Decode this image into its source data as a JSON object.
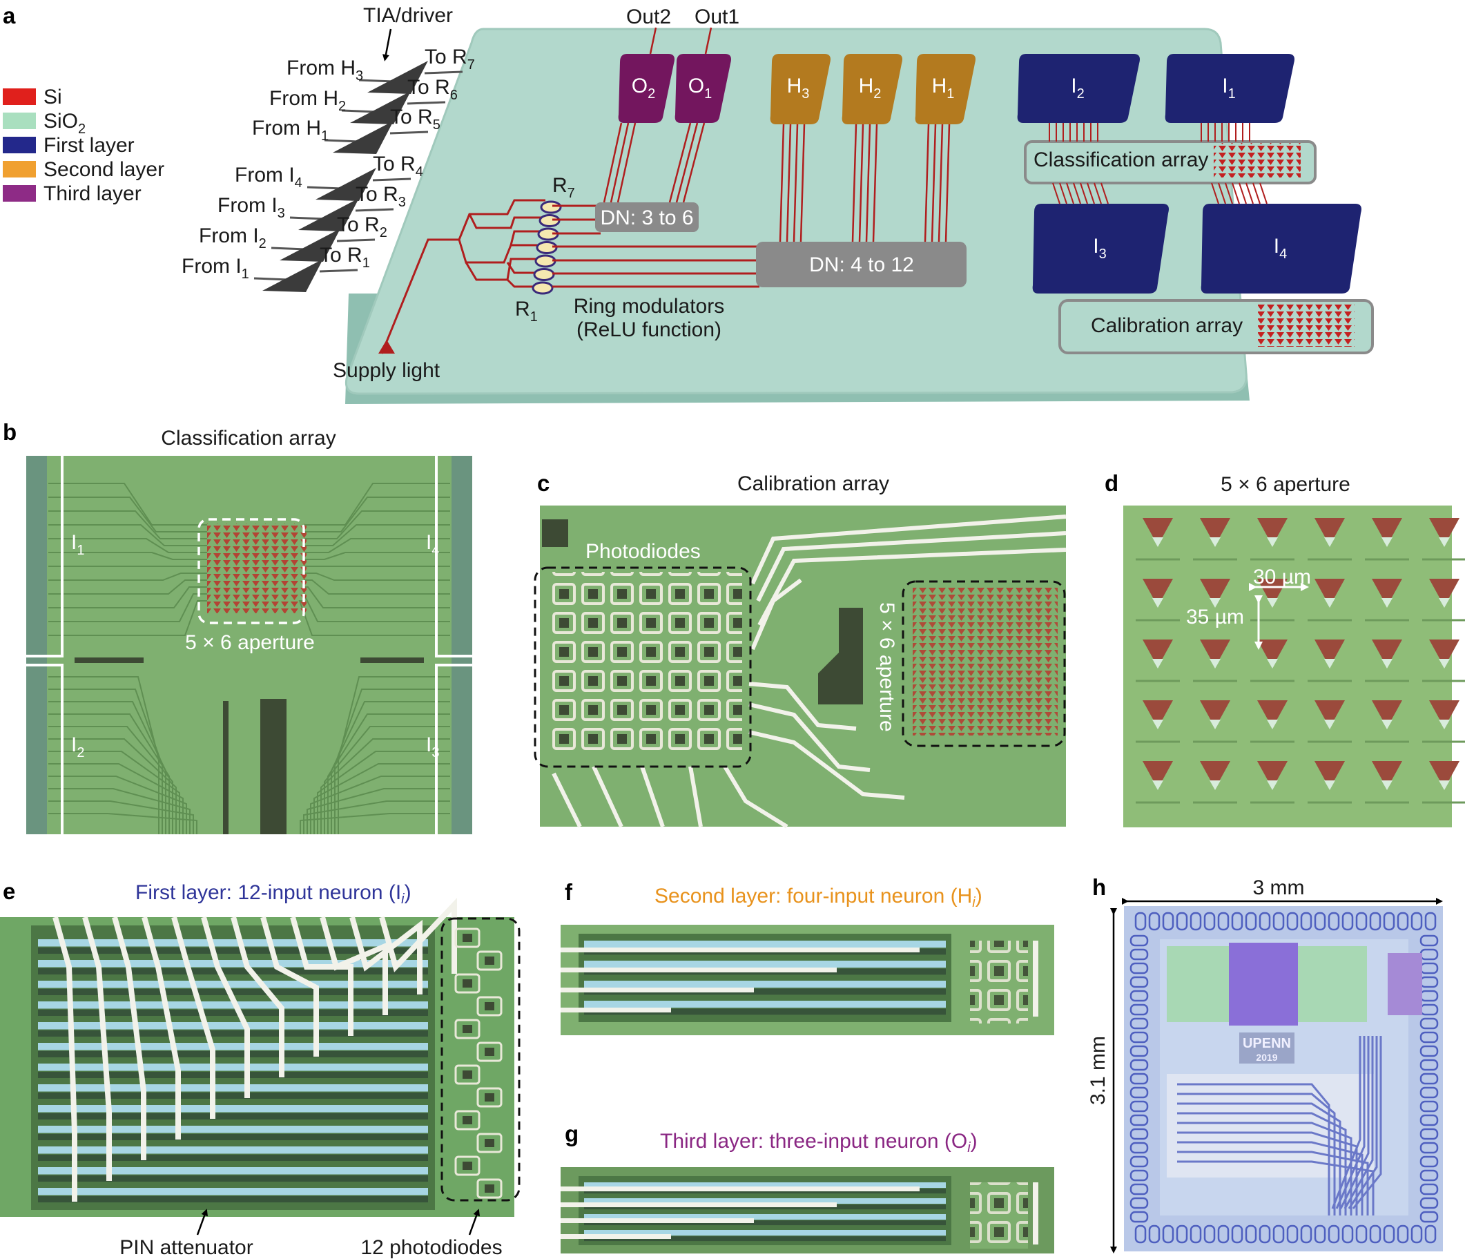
{
  "panel_letters": {
    "a": "a",
    "b": "b",
    "c": "c",
    "d": "d",
    "e": "e",
    "f": "f",
    "g": "g",
    "h": "h"
  },
  "legend": [
    {
      "label": "Si",
      "color": "#e0201c"
    },
    {
      "label": "SiO",
      "sub": "2",
      "color": "#a9dfbf"
    },
    {
      "label": "First layer",
      "color": "#23288b"
    },
    {
      "label": "Second layer",
      "color": "#f0a030"
    },
    {
      "label": "Third layer",
      "color": "#8e2b86"
    }
  ],
  "colors": {
    "chip": "#b2d8cc",
    "chip_edge": "#8fbfb1",
    "first": "#1e2371",
    "second": "#b37a1f",
    "third": "#73165e",
    "dn": "#8a8a8a",
    "wire": "#b01e1e",
    "micro": "#7fb070",
    "micro_dark": "#4d7a44",
    "accent_first": "#2f3599",
    "accent_second": "#e8921c",
    "accent_third": "#8a2783"
  },
  "panel_a": {
    "tia_label": "TIA/driver",
    "drivers": [
      {
        "from": "From H",
        "from_sub": "3",
        "to": "To R",
        "to_sub": "7"
      },
      {
        "from": "From H",
        "from_sub": "2",
        "to": "To R",
        "to_sub": "6"
      },
      {
        "from": "From H",
        "from_sub": "1",
        "to": "To R",
        "to_sub": "5"
      },
      {
        "from": "From I",
        "from_sub": "4",
        "to": "To R",
        "to_sub": "4"
      },
      {
        "from": "From I",
        "from_sub": "3",
        "to": "To R",
        "to_sub": "3"
      },
      {
        "from": "From I",
        "from_sub": "2",
        "to": "To R",
        "to_sub": "2"
      },
      {
        "from": "From I",
        "from_sub": "1",
        "to": "To R",
        "to_sub": "1"
      }
    ],
    "outputs": [
      {
        "label": "Out2"
      },
      {
        "label": "Out1"
      }
    ],
    "third_layer_blocks": [
      {
        "label": "O",
        "sub": "2"
      },
      {
        "label": "O",
        "sub": "1"
      }
    ],
    "second_layer_blocks": [
      {
        "label": "H",
        "sub": "3"
      },
      {
        "label": "H",
        "sub": "2"
      },
      {
        "label": "H",
        "sub": "1"
      }
    ],
    "first_layer_blocks": [
      {
        "label": "I",
        "sub": "2"
      },
      {
        "label": "I",
        "sub": "1"
      },
      {
        "label": "I",
        "sub": "3"
      },
      {
        "label": "I",
        "sub": "4"
      }
    ],
    "dn_small": "DN: 3 to 6",
    "dn_large": "DN: 4 to 12",
    "classification_array": "Classification array",
    "calibration_array": "Calibration array",
    "ring_top": {
      "label": "R",
      "sub": "7"
    },
    "ring_bottom": {
      "label": "R",
      "sub": "1"
    },
    "ring_modulators_line1": "Ring modulators",
    "ring_modulators_line2": "(ReLU function)",
    "supply_light": "Supply light"
  },
  "panel_b": {
    "title": "Classification array",
    "aperture": "5 × 6 aperture",
    "corners": [
      {
        "label": "I",
        "sub": "1"
      },
      {
        "label": "I",
        "sub": "4"
      },
      {
        "label": "I",
        "sub": "2"
      },
      {
        "label": "I",
        "sub": "3"
      }
    ]
  },
  "panel_c": {
    "title": "Calibration array",
    "photodiodes": "Photodiodes",
    "aperture": "5 × 6 aperture"
  },
  "panel_d": {
    "title": "5 × 6 aperture",
    "pitch_x": "30 µm",
    "pitch_y": "35 µm"
  },
  "panel_e": {
    "title": "First layer: 12-input neuron (I",
    "title_sub": "i",
    "title_close": ")",
    "pin": "PIN attenuator",
    "photodiodes": "12 photodiodes"
  },
  "panel_f": {
    "title": "Second layer: four-input neuron (H",
    "title_sub": "i",
    "title_close": ")"
  },
  "panel_g": {
    "title": "Third layer: three-input neuron (O",
    "title_sub": "i",
    "title_close": ")"
  },
  "panel_h": {
    "width": "3 mm",
    "height": "3.1 mm",
    "logo_line1": "UPENN",
    "logo_line2": "2019"
  }
}
